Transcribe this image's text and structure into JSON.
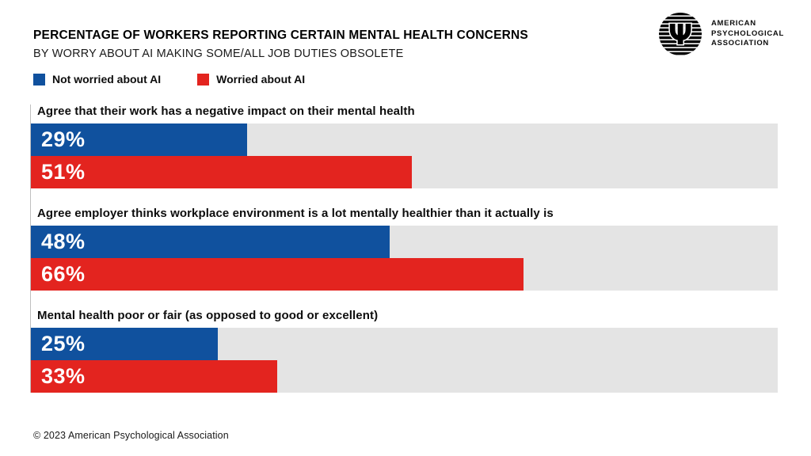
{
  "header": {
    "title": "PERCENTAGE OF WORKERS REPORTING CERTAIN MENTAL HEALTH CONCERNS",
    "subtitle": "BY WORRY ABOUT AI MAKING SOME/ALL JOB DUTIES OBSOLETE",
    "logo": {
      "symbol": "Ψ",
      "org_lines": [
        "AMERICAN",
        "PSYCHOLOGICAL",
        "ASSOCIATION"
      ]
    }
  },
  "legend": {
    "items": [
      {
        "label": "Not worried about AI",
        "color": "#10519e"
      },
      {
        "label": "Worried about AI",
        "color": "#e3241f"
      }
    ]
  },
  "colors": {
    "not_worried_blue": "#10519e",
    "worried_red": "#e3241f",
    "bar_track_gray": "#e4e4e4",
    "axis_line_gray": "#bfbfbf"
  },
  "chart_data": {
    "type": "bar",
    "orientation": "horizontal",
    "unit": "percent",
    "xlim": [
      0,
      100
    ],
    "grid": false,
    "legend_position": "top-left",
    "series_names": [
      "Not worried about AI",
      "Worried about AI"
    ],
    "groups": [
      {
        "label": "Agree that their work has a negative impact on their mental health",
        "bars": [
          {
            "series": "Not worried about AI",
            "value": 29,
            "display": "29%",
            "color": "#10519e"
          },
          {
            "series": "Worried about AI",
            "value": 51,
            "display": "51%",
            "color": "#e3241f"
          }
        ]
      },
      {
        "label": "Agree employer thinks workplace environment is a lot mentally healthier than it actually is",
        "bars": [
          {
            "series": "Not worried about AI",
            "value": 48,
            "display": "48%",
            "color": "#10519e"
          },
          {
            "series": "Worried about AI",
            "value": 66,
            "display": "66%",
            "color": "#e3241f"
          }
        ]
      },
      {
        "label": "Mental health poor or fair (as opposed to good or excellent)",
        "bars": [
          {
            "series": "Not worried about AI",
            "value": 25,
            "display": "25%",
            "color": "#10519e"
          },
          {
            "series": "Worried about AI",
            "value": 33,
            "display": "33%",
            "color": "#e3241f"
          }
        ]
      }
    ]
  },
  "footer": {
    "copyright": "© 2023 American Psychological Association"
  }
}
